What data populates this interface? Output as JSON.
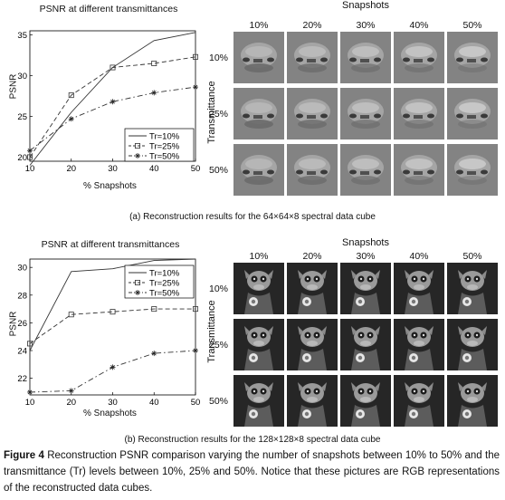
{
  "panel_a": {
    "plot_title": "PSNR at different transmittances",
    "y_axis_label": "PSNR",
    "x_axis_label": "% Snapshots",
    "legend": [
      "Tr=10%",
      "Tr=25%",
      "Tr=50%"
    ],
    "grid_title": "Snapshots",
    "grid_columns": [
      "10%",
      "20%",
      "30%",
      "40%",
      "50%"
    ],
    "grid_rows": [
      "10%",
      "25%",
      "50%"
    ],
    "grid_side_label": "Transmittance",
    "caption": "(a)  Reconstruction results for the 64×64×8 spectral data cube"
  },
  "panel_b": {
    "plot_title": "PSNR at different transmittances",
    "y_axis_label": "PSNR",
    "x_axis_label": "% Snapshots",
    "legend": [
      "Tr=10%",
      "Tr=25%",
      "Tr=50%"
    ],
    "grid_title": "Snapshots",
    "grid_columns": [
      "10%",
      "20%",
      "30%",
      "40%",
      "50%"
    ],
    "grid_rows": [
      "10%",
      "25%",
      "50%"
    ],
    "grid_side_label": "Transmittance",
    "caption": "(b) Reconstruction results for the 128×128×8 spectral data cube"
  },
  "figure_caption": {
    "label": "Figure 4",
    "text": " Reconstruction PSNR comparison varying the number of snapshots between 10% to 50% and the transmittance (Tr) levels between 10%, 25% and 50%. Notice that these pictures are RGB representations of the reconstructed data cubes."
  },
  "chart_data": [
    {
      "type": "line",
      "title": "PSNR at different transmittances",
      "xlabel": "% Snapshots",
      "ylabel": "PSNR",
      "x": [
        10,
        20,
        30,
        40,
        50
      ],
      "xlim": [
        10,
        50
      ],
      "ylim": [
        19.5,
        35.5
      ],
      "xticks": [
        10,
        20,
        30,
        40,
        50
      ],
      "yticks": [
        20,
        25,
        30,
        35
      ],
      "legend_position": "bottom-right",
      "series": [
        {
          "name": "Tr=10%",
          "values": [
            19.0,
            25.5,
            31.0,
            34.3,
            35.3
          ],
          "style": "solid",
          "marker": "none"
        },
        {
          "name": "Tr=25%",
          "values": [
            20.0,
            27.6,
            31.0,
            31.5,
            32.3
          ],
          "style": "dashed",
          "marker": "square"
        },
        {
          "name": "Tr=50%",
          "values": [
            20.8,
            24.7,
            26.8,
            27.9,
            28.6
          ],
          "style": "dashdot",
          "marker": "star"
        }
      ]
    },
    {
      "type": "line",
      "title": "PSNR at different transmittances",
      "xlabel": "% Snapshots",
      "ylabel": "PSNR",
      "x": [
        10,
        20,
        30,
        40,
        50
      ],
      "xlim": [
        10,
        50
      ],
      "ylim": [
        20.8,
        30.6
      ],
      "xticks": [
        10,
        20,
        30,
        40,
        50
      ],
      "yticks": [
        22,
        24,
        26,
        28,
        30
      ],
      "legend_position": "top-right",
      "series": [
        {
          "name": "Tr=10%",
          "values": [
            24.0,
            29.7,
            29.9,
            30.5,
            30.6
          ],
          "style": "solid",
          "marker": "none"
        },
        {
          "name": "Tr=25%",
          "values": [
            24.5,
            26.6,
            26.8,
            27.0,
            27.0
          ],
          "style": "dashed",
          "marker": "square"
        },
        {
          "name": "Tr=50%",
          "values": [
            21.0,
            21.1,
            22.8,
            23.8,
            24.0
          ],
          "style": "dashdot",
          "marker": "star"
        }
      ]
    }
  ]
}
